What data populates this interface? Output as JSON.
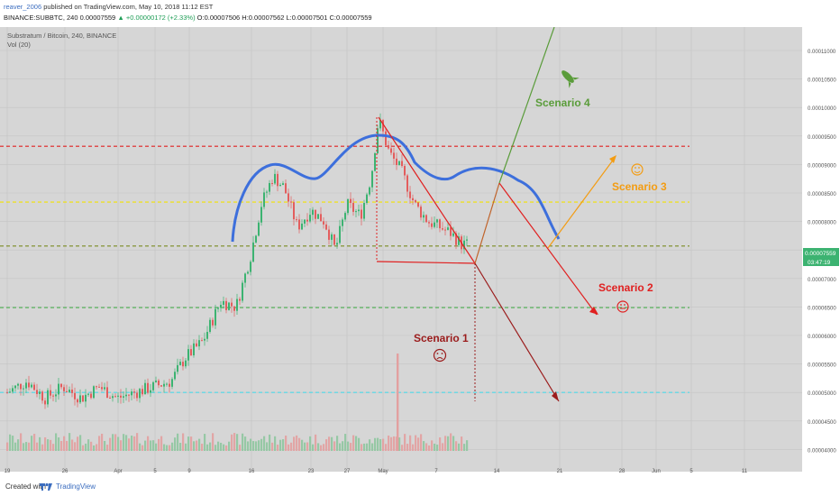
{
  "header": {
    "publisher": "reaver_2006",
    "published_text": "published on TradingView.com, May 10, 2018 11:12 EST",
    "symbol_line_prefix": "BINANCE:SUBBTC, 240  0.00007559",
    "change_text": "▲ +0.00000172 (+2.33%)",
    "ohlc_text": "O:0.00007506 H:0.00007562 L:0.00007501 C:0.00007559"
  },
  "chart_data": {
    "type": "candlestick",
    "title": "Substratum / Bitcoin, 240, BINANCE",
    "indicator_label": "Vol (20)",
    "ylim": [
      4e-05,
      0.000113
    ],
    "y_ticks": [
      "0.00011000",
      "0.00010500",
      "0.00010000",
      "0.00009500",
      "0.00009000",
      "0.00008500",
      "0.00008000",
      "0.00007500",
      "0.00007000",
      "0.00006500",
      "0.00006000",
      "0.00005500",
      "0.00005000",
      "0.00004500",
      "0.00004000"
    ],
    "x_ticks": [
      "19",
      "26",
      "Apr",
      "5",
      "9",
      "16",
      "23",
      "27",
      "May",
      "7",
      "14",
      "21",
      "28",
      "Jun",
      "5",
      "11"
    ],
    "price_label": "0.00007559",
    "countdown_label": "03:47:19",
    "annotations": [
      "Scenario 4",
      "Scenario 3",
      "Scenario 2",
      "Scenario 1"
    ],
    "horizontal_levels": [
      {
        "value": 9.32e-05,
        "color": "#e02020"
      },
      {
        "value": 8.34e-05,
        "color": "#f2e200"
      },
      {
        "value": 7.57e-05,
        "color": "#7a8a20"
      },
      {
        "value": 6.49e-05,
        "color": "#4caf50"
      },
      {
        "value": 5e-05,
        "color": "#4dd8e8"
      }
    ]
  },
  "colors": {
    "background": "#d6d6d6",
    "up": "#3cb371",
    "down": "#e35d5d",
    "arc": "#3d6fdc",
    "scenario1": "#9b1c1c",
    "scenario2": "#e02020",
    "scenario3": "#f39c12",
    "scenario4": "#5a9c3a"
  },
  "footer": {
    "created_with": "Created with",
    "brand": "TradingView"
  }
}
